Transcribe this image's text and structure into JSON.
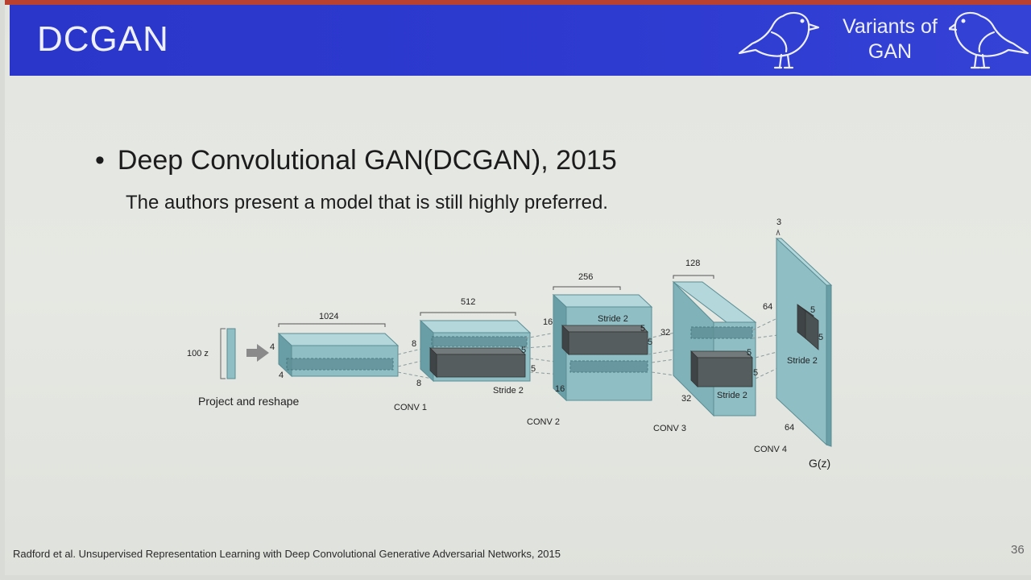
{
  "header": {
    "title": "DCGAN",
    "section": [
      "Variants of",
      "GAN"
    ]
  },
  "body": {
    "bullet": "•",
    "heading": "Deep Convolutional GAN(DCGAN), 2015",
    "subtitle": "The authors present a model that is still highly preferred."
  },
  "diagram": {
    "input": {
      "label": "100 z",
      "caption": "Project and reshape"
    },
    "proj_dims": {
      "depth": "1024",
      "h": "4",
      "w": "4"
    },
    "conv1": {
      "label": "CONV 1",
      "depth": "512",
      "h": "8",
      "w": "8",
      "kernel_a": "5",
      "kernel_b": "5",
      "stride": "Stride 2"
    },
    "conv2": {
      "label": "CONV 2",
      "depth": "256",
      "h": "16",
      "w": "16",
      "kernel_a": "5",
      "kernel_b": "5",
      "stride": "Stride 2"
    },
    "conv3": {
      "label": "CONV 3",
      "depth": "128",
      "h": "32",
      "w": "32",
      "kernel_a": "5",
      "kernel_b": "5",
      "stride": "Stride 2"
    },
    "conv4": {
      "label": "CONV 4",
      "depth": "3",
      "h": "64",
      "w": "64",
      "kernel_a": "5",
      "kernel_b": "5",
      "stride": "Stride 2"
    },
    "output": {
      "label": "G(z)"
    }
  },
  "footer": {
    "reference": "Radford et al. Unsupervised Representation Learning with Deep Convolutional Generative Adversarial Networks, 2015",
    "page": "36"
  },
  "colors": {
    "header": "#2e3bd0",
    "block_front": "#8fbfc5",
    "block_top": "#b3d7db",
    "block_side": "#6a9ea6",
    "kernel": "#555d5f"
  },
  "icons": [
    "bird-icon",
    "arrow-right-icon"
  ]
}
